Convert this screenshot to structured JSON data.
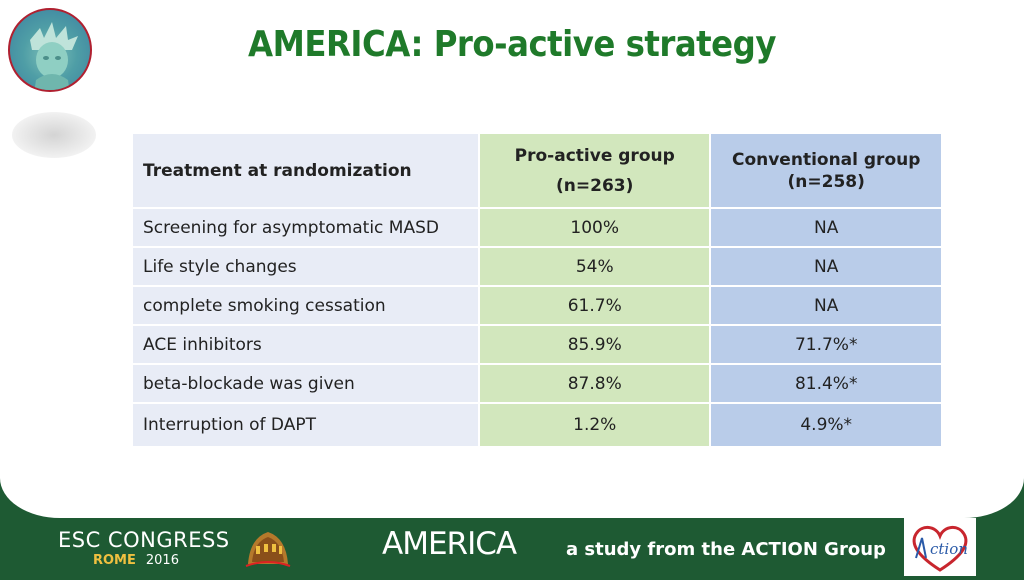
{
  "title": "AMERICA: Pro-active strategy",
  "table": {
    "header": {
      "col1": "Treatment at randomization",
      "col2_label": "Pro-active group",
      "col2_n": "(n=263)",
      "col3_label": "Conventional group",
      "col3_n": "(n=258)"
    },
    "rows": [
      {
        "label": "Screening for asymptomatic MASD",
        "proactive": "100%",
        "conventional": "NA"
      },
      {
        "label": "Life style changes",
        "proactive": "54%",
        "conventional": "NA"
      },
      {
        "label": "complete smoking cessation",
        "proactive": "61.7%",
        "conventional": "NA"
      },
      {
        "label": "ACE inhibitors",
        "proactive": "85.9%",
        "conventional": "71.7%*"
      },
      {
        "label": "beta-blockade was given",
        "proactive": "87.8%",
        "conventional": "81.4%*"
      },
      {
        "label": "Interruption of DAPT",
        "proactive": "1.2%",
        "conventional": "4.9%*"
      }
    ]
  },
  "footer": {
    "congress": "ESC CONGRESS",
    "city": "ROME",
    "year": "2016",
    "study_name": "AMERICA",
    "tagline": "a study from the ACTION Group",
    "action_logo_text": "ction"
  },
  "colors": {
    "title": "#1f7a2a",
    "footer_bg": "#1e5a33",
    "col1_bg": "#e8ecf6",
    "col2_bg": "#d2e7bd",
    "col3_bg": "#b9cce9"
  },
  "icons": {
    "top_logo": "statue-of-liberty-icon",
    "coliseum": "coliseum-icon",
    "action": "action-heart-logo-icon"
  }
}
